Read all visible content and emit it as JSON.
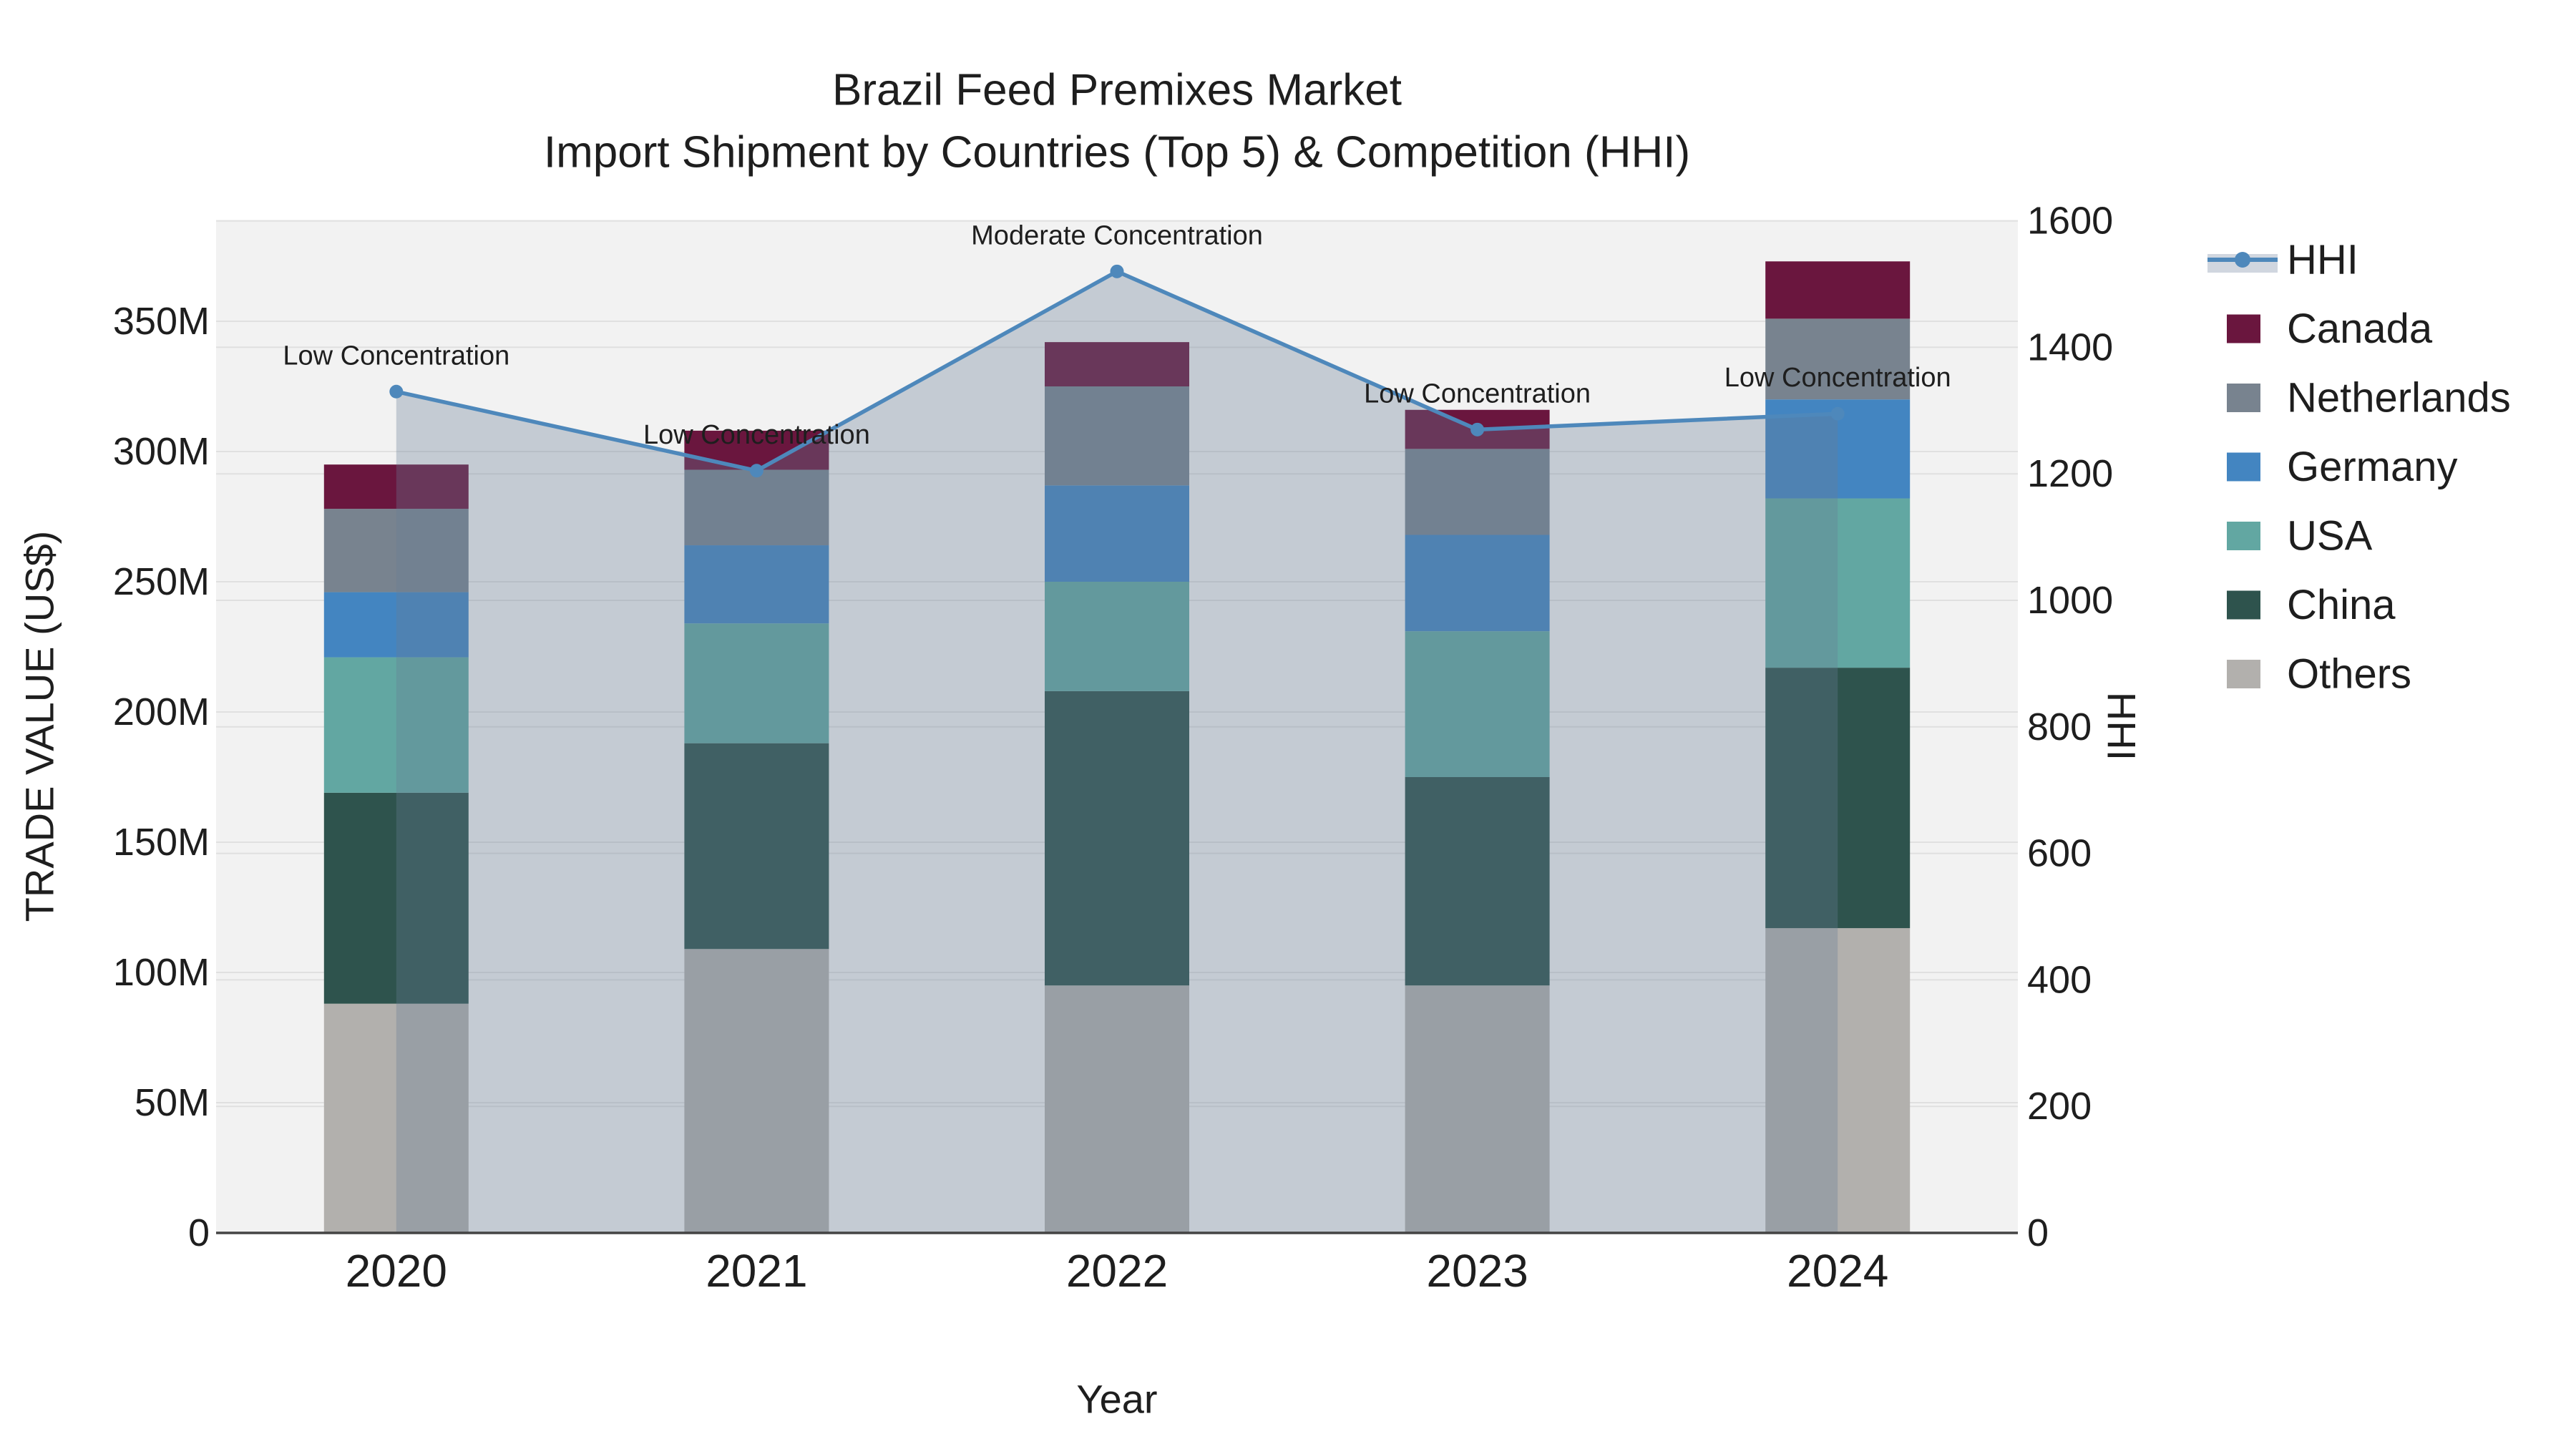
{
  "title": {
    "line1": "Brazil Feed Premixes Market",
    "line2": "Import Shipment by Countries (Top 5) & Competition (HHI)"
  },
  "axes": {
    "x": {
      "title": "Year",
      "ticks": [
        "2020",
        "2021",
        "2022",
        "2023",
        "2024"
      ]
    },
    "y_left": {
      "title": "TRADE VALUE (US$)",
      "ticks": [
        "0",
        "50M",
        "100M",
        "150M",
        "200M",
        "250M",
        "300M",
        "350M"
      ]
    },
    "y_right": {
      "title": "HHI",
      "ticks": [
        "0",
        "200",
        "400",
        "600",
        "800",
        "1000",
        "1200",
        "1400",
        "1600"
      ]
    }
  },
  "legend": {
    "items": [
      {
        "label": "HHI",
        "color": "#4e88bb",
        "type": "line"
      },
      {
        "label": "Canada",
        "color": "#6a163e",
        "type": "swatch"
      },
      {
        "label": "Netherlands",
        "color": "#78838f",
        "type": "swatch"
      },
      {
        "label": "Germany",
        "color": "#4385c1",
        "type": "swatch"
      },
      {
        "label": "USA",
        "color": "#62a7a2",
        "type": "swatch"
      },
      {
        "label": "China",
        "color": "#2e534d",
        "type": "swatch"
      },
      {
        "label": "Others",
        "color": "#b2b0ad",
        "type": "swatch"
      }
    ]
  },
  "chart_data": {
    "type": "bar",
    "subtype": "stacked bars (left axis, trade value) with HHI line + shaded area overlay (right axis)",
    "title": "Brazil Feed Premixes Market — Import Shipment by Countries (Top 5) & Competition (HHI)",
    "xlabel": "Year",
    "ylabel_left": "TRADE VALUE (US$)",
    "ylabel_right": "HHI",
    "categories": [
      "2020",
      "2021",
      "2022",
      "2023",
      "2024"
    ],
    "values_unit": "million US$",
    "series": [
      {
        "name": "Others",
        "color": "#b2b0ad",
        "values": [
          88,
          109,
          95,
          95,
          117
        ]
      },
      {
        "name": "China",
        "color": "#2e534d",
        "values": [
          81,
          79,
          113,
          80,
          100
        ]
      },
      {
        "name": "USA",
        "color": "#62a7a2",
        "values": [
          52,
          46,
          42,
          56,
          65
        ]
      },
      {
        "name": "Germany",
        "color": "#4385c1",
        "values": [
          25,
          30,
          37,
          37,
          38
        ]
      },
      {
        "name": "Netherlands",
        "color": "#78838f",
        "values": [
          32,
          29,
          38,
          33,
          31
        ]
      },
      {
        "name": "Canada",
        "color": "#6a163e",
        "values": [
          17,
          15,
          17,
          15,
          22
        ]
      }
    ],
    "stack_totals_million": [
      295,
      308,
      342,
      316,
      373
    ],
    "line_series": {
      "name": "HHI",
      "axis": "right",
      "color": "#4e88bb",
      "fill": "tozero",
      "fill_color": "rgba(104,124,150,0.33)",
      "values": [
        1330,
        1205,
        1520,
        1270,
        1295
      ]
    },
    "annotations": [
      {
        "category": "2020",
        "text": "Low Concentration"
      },
      {
        "category": "2021",
        "text": "Low Concentration"
      },
      {
        "category": "2022",
        "text": "Moderate Concentration"
      },
      {
        "category": "2023",
        "text": "Low Concentration"
      },
      {
        "category": "2024",
        "text": "Low Concentration"
      }
    ],
    "ylim_left_million": [
      0,
      389
    ],
    "ylim_right": [
      0,
      1600
    ],
    "grid": true,
    "legend_position": "right",
    "plot_background": "#f2f2f2",
    "gridline_color": "#e0e0e0",
    "axisline_color": "#444444"
  }
}
